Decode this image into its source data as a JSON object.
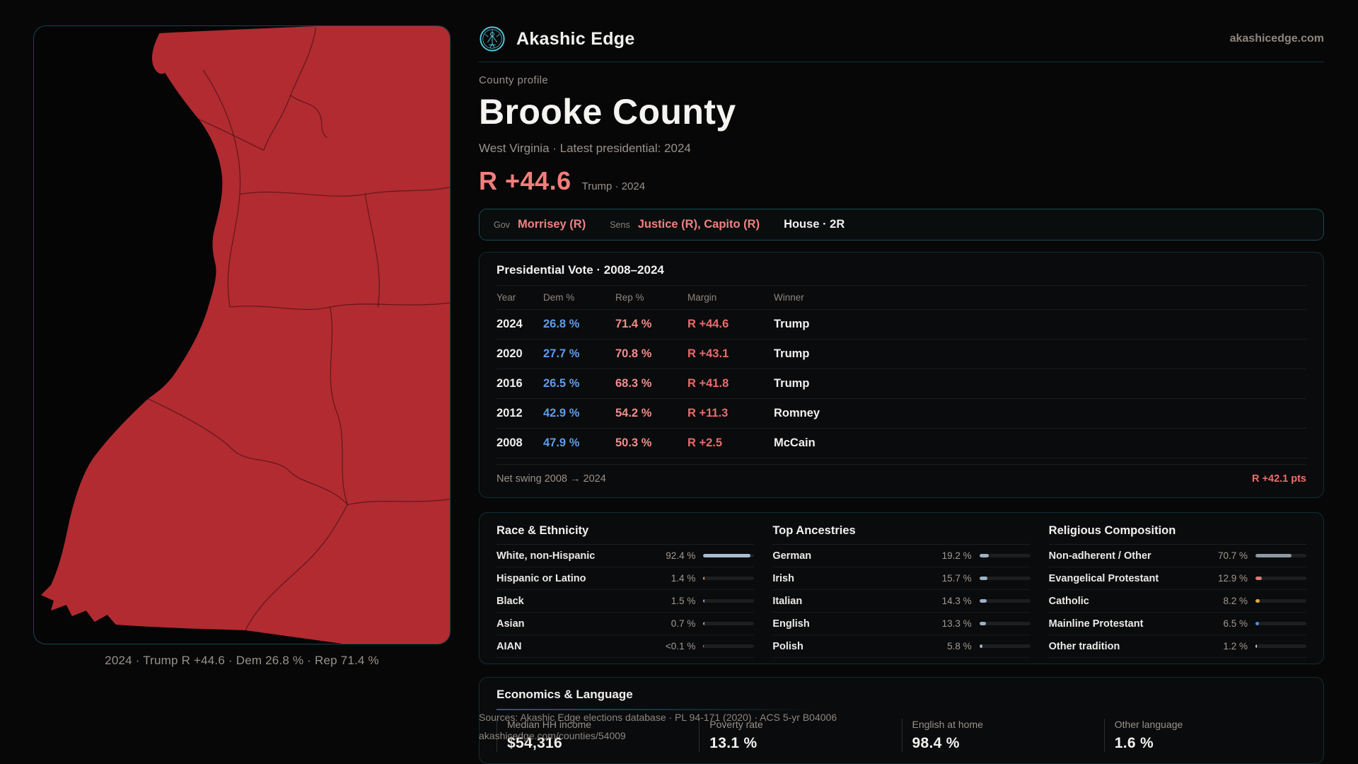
{
  "brand": {
    "name": "Akashic Edge",
    "domain": "akashicedge.com"
  },
  "page": {
    "eyebrow": "County profile",
    "title": "Brooke County",
    "subtitle": "West Virginia · Latest presidential: 2024",
    "headline_margin": "R +44.6",
    "headline_note": "Trump · 2024"
  },
  "officials": {
    "gov_label": "Gov",
    "gov_value": "Morrisey (R)",
    "sens_label": "Sens",
    "sens_value": "Justice (R), Capito (R)",
    "house_value": "House · 2R"
  },
  "vote_table": {
    "title": "Presidential Vote · 2008–2024",
    "columns": [
      "Year",
      "Dem %",
      "Rep %",
      "Margin",
      "Winner"
    ],
    "rows": [
      {
        "year": "2024",
        "dem": "26.8 %",
        "rep": "71.4 %",
        "margin": "R +44.6",
        "winner": "Trump"
      },
      {
        "year": "2020",
        "dem": "27.7 %",
        "rep": "70.8 %",
        "margin": "R +43.1",
        "winner": "Trump"
      },
      {
        "year": "2016",
        "dem": "26.5 %",
        "rep": "68.3 %",
        "margin": "R +41.8",
        "winner": "Trump"
      },
      {
        "year": "2012",
        "dem": "42.9 %",
        "rep": "54.2 %",
        "margin": "R +11.3",
        "winner": "Romney"
      },
      {
        "year": "2008",
        "dem": "47.9 %",
        "rep": "50.3 %",
        "margin": "R +2.5",
        "winner": "McCain"
      }
    ],
    "net_swing_label": "Net swing 2008 → 2024",
    "net_swing_value": "R +42.1 pts"
  },
  "demographics": [
    {
      "title": "Race & Ethnicity",
      "rows": [
        {
          "label": "White, non-Hispanic",
          "value": "92.4 %",
          "pct": 92.4,
          "color": "#a9bcd0"
        },
        {
          "label": "Hispanic or Latino",
          "value": "1.4 %",
          "pct": 1.4,
          "color": "#d69a3e"
        },
        {
          "label": "Black",
          "value": "1.5 %",
          "pct": 1.5,
          "color": "#a295dd"
        },
        {
          "label": "Asian",
          "value": "0.7 %",
          "pct": 0.7,
          "color": "#95a4b2"
        },
        {
          "label": "AIAN",
          "value": "<0.1 %",
          "pct": 0.05,
          "color": "#95a4b2"
        }
      ]
    },
    {
      "title": "Top Ancestries",
      "rows": [
        {
          "label": "German",
          "value": "19.2 %",
          "pct": 19.2,
          "color": "#9cb3c6"
        },
        {
          "label": "Irish",
          "value": "15.7 %",
          "pct": 15.7,
          "color": "#9cb3c6"
        },
        {
          "label": "Italian",
          "value": "14.3 %",
          "pct": 14.3,
          "color": "#9cb3c6"
        },
        {
          "label": "English",
          "value": "13.3 %",
          "pct": 13.3,
          "color": "#9cb3c6"
        },
        {
          "label": "Polish",
          "value": "5.8 %",
          "pct": 5.8,
          "color": "#9cb3c6"
        }
      ]
    },
    {
      "title": "Religious Composition",
      "rows": [
        {
          "label": "Non-adherent / Other",
          "value": "70.7 %",
          "pct": 70.7,
          "color": "#8e99a4"
        },
        {
          "label": "Evangelical Protestant",
          "value": "12.9 %",
          "pct": 12.9,
          "color": "#e2747b"
        },
        {
          "label": "Catholic",
          "value": "8.2 %",
          "pct": 8.2,
          "color": "#e2a93a"
        },
        {
          "label": "Mainline Protestant",
          "value": "6.5 %",
          "pct": 6.5,
          "color": "#4e8ede"
        },
        {
          "label": "Other tradition",
          "value": "1.2 %",
          "pct": 1.2,
          "color": "#cfd3d7"
        }
      ]
    }
  ],
  "economics": {
    "title": "Economics & Language",
    "stats": [
      {
        "label": "Median HH income",
        "value": "$54,316"
      },
      {
        "label": "Poverty rate",
        "value": "13.1 %"
      },
      {
        "label": "English at home",
        "value": "98.4 %"
      },
      {
        "label": "Other language",
        "value": "1.6 %"
      }
    ]
  },
  "map": {
    "caption": "2024 · Trump R +44.6 · Dem 26.8 % · Rep 71.4 %",
    "fill_color": "#b12b31"
  },
  "footer": {
    "line1": "Sources: Akashic Edge elections database · PL 94-171 (2020) · ACS 5-yr B04006",
    "line2": "akashicedge.com/counties/54009"
  },
  "colors": {
    "accent_red": "#f37d7d",
    "dem_blue": "#5d9eea",
    "rep_red": "#f28c8c",
    "teal_border": "#164650",
    "logo_cyan": "#55cbdd"
  }
}
